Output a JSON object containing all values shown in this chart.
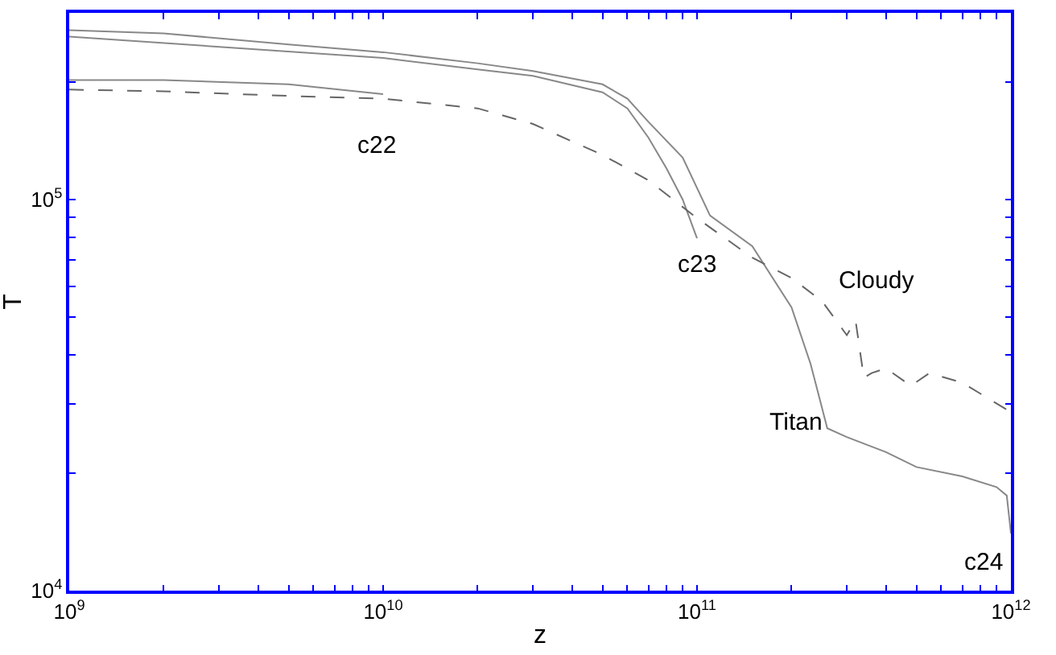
{
  "chart_data": {
    "type": "line",
    "xlabel": "z",
    "ylabel": "T",
    "log": "xy",
    "marker": "none",
    "xlim": [
      1000000000.0,
      1000000000000.0
    ],
    "ylim": [
      10000.0,
      300000.0
    ],
    "xticks": [
      {
        "value": 1000000000.0,
        "label": "10$^{9}$"
      },
      {
        "value": 2000000000.0,
        "label": null
      },
      {
        "value": 3000000000.0,
        "label": null
      },
      {
        "value": 4000000000.0,
        "label": null
      },
      {
        "value": 5000000000.0,
        "label": null
      },
      {
        "value": 6000000000.0,
        "label": null
      },
      {
        "value": 7000000000.0,
        "label": null
      },
      {
        "value": 8000000000.0,
        "label": null
      },
      {
        "value": 9000000000.0,
        "label": null
      },
      {
        "value": 10000000000.0,
        "label": "10$^{10}$"
      },
      {
        "value": 20000000000.0,
        "label": null
      },
      {
        "value": 30000000000.0,
        "label": null
      },
      {
        "value": 40000000000.0,
        "label": null
      },
      {
        "value": 50000000000.0,
        "label": null
      },
      {
        "value": 60000000000.0,
        "label": null
      },
      {
        "value": 70000000000.0,
        "label": null
      },
      {
        "value": 80000000000.0,
        "label": null
      },
      {
        "value": 90000000000.0,
        "label": null
      },
      {
        "value": 100000000000.0,
        "label": "10$^{11}$"
      },
      {
        "value": 200000000000.0,
        "label": null
      },
      {
        "value": 300000000000.0,
        "label": null
      },
      {
        "value": 400000000000.0,
        "label": null
      },
      {
        "value": 500000000000.0,
        "label": null
      },
      {
        "value": 600000000000.0,
        "label": null
      },
      {
        "value": 700000000000.0,
        "label": null
      },
      {
        "value": 800000000000.0,
        "label": null
      },
      {
        "value": 900000000000.0,
        "label": null
      },
      {
        "value": 1000000000000.0,
        "label": "10$^{12}$"
      }
    ],
    "yticks": [
      {
        "value": 10000.0,
        "label": "10$^{4}$"
      },
      {
        "value": 20000.0,
        "label": null
      },
      {
        "value": 30000.0,
        "label": null
      },
      {
        "value": 40000.0,
        "label": null
      },
      {
        "value": 50000.0,
        "label": null
      },
      {
        "value": 60000.0,
        "label": null
      },
      {
        "value": 70000.0,
        "label": null
      },
      {
        "value": 80000.0,
        "label": null
      },
      {
        "value": 90000.0,
        "label": null
      },
      {
        "value": 100000.0,
        "label": "10$^{5}$"
      },
      {
        "value": 200000.0,
        "label": null
      },
      {
        "value": 300000.0,
        "label": null
      }
    ],
    "series": [
      {
        "color": "#888888",
        "line_style": "solid",
        "x": [
          1000000000.0,
          2000000000.0,
          5000000000.0,
          10000000000.0,
          20000000000.0,
          30000000000.0,
          50000000000.0,
          60000000000.0,
          70000000000.0,
          90000000000.0,
          110000000000.0,
          150000000000.0,
          200000000000.0,
          230000000000.0,
          260000000000.0,
          300000000000.0,
          400000000000.0,
          500000000000.0,
          700000000000.0,
          900000000000.0,
          970000000000.0,
          1000000000000.0
        ],
        "values": [
          271000.0,
          266000.0,
          249000.0,
          238000.0,
          223000.0,
          213000.0,
          197000.0,
          181000.0,
          158000.0,
          128000.0,
          91000.0,
          76000.0,
          53000.0,
          38000.0,
          26000.0,
          24700.0,
          22600.0,
          20700.0,
          19600.0,
          18400.0,
          17500.0,
          14000.0
        ]
      },
      {
        "color": "#888888",
        "line_style": "solid",
        "x": [
          1000000000.0,
          10000000000.0,
          20000000000.0,
          30000000000.0,
          50000000000.0,
          60000000000.0,
          70000000000.0,
          80000000000.0,
          90000000000.0,
          100000000000.0
        ],
        "values": [
          261000.0,
          230000.0,
          215000.0,
          207000.0,
          188000.0,
          171000.0,
          144000.0,
          120000.0,
          100000.0,
          79600.0
        ]
      },
      {
        "color": "#888888",
        "line_style": "solid",
        "x": [
          1000000000.0,
          2000000000.0,
          5000000000.0,
          10000000000.0
        ],
        "values": [
          202000.0,
          202000.0,
          197000.0,
          186000.0
        ]
      },
      {
        "color": "#666666",
        "line_style": "dashed",
        "x": [
          1000000000.0,
          2000000000.0,
          5000000000.0,
          10000000000.0,
          20000000000.0,
          30000000000.0,
          50000000000.0,
          70000000000.0,
          100000000000.0,
          150000000000.0,
          200000000000.0,
          250000000000.0,
          300000000000.0,
          320000000000.0,
          340000000000.0,
          360000000000.0,
          400000000000.0,
          480000000000.0,
          550000000000.0,
          700000000000.0,
          1000000000000.0
        ],
        "values": [
          191000.0,
          189000.0,
          184000.0,
          181000.0,
          171000.0,
          156000.0,
          130000.0,
          112000.0,
          89600.0,
          71000.0,
          63000.0,
          55000.0,
          45000.0,
          49000.0,
          35000.0,
          36000.0,
          37000.0,
          33400.0,
          36000.0,
          34000.0,
          28600.0
        ]
      }
    ],
    "annotations": [
      {
        "text": "c22",
        "x": 10000000000.0,
        "y": 186000.0
      },
      {
        "text": "c23",
        "x": 100000000000.0,
        "y": 79600.0
      },
      {
        "text": "Cloudy",
        "x": 250000000000.0,
        "y": 55000.0
      },
      {
        "text": "Titan",
        "x": 260000000000.0,
        "y": 26000.0
      },
      {
        "text": "c24",
        "x": 1000000000000.0,
        "y": 14000.0
      }
    ]
  }
}
